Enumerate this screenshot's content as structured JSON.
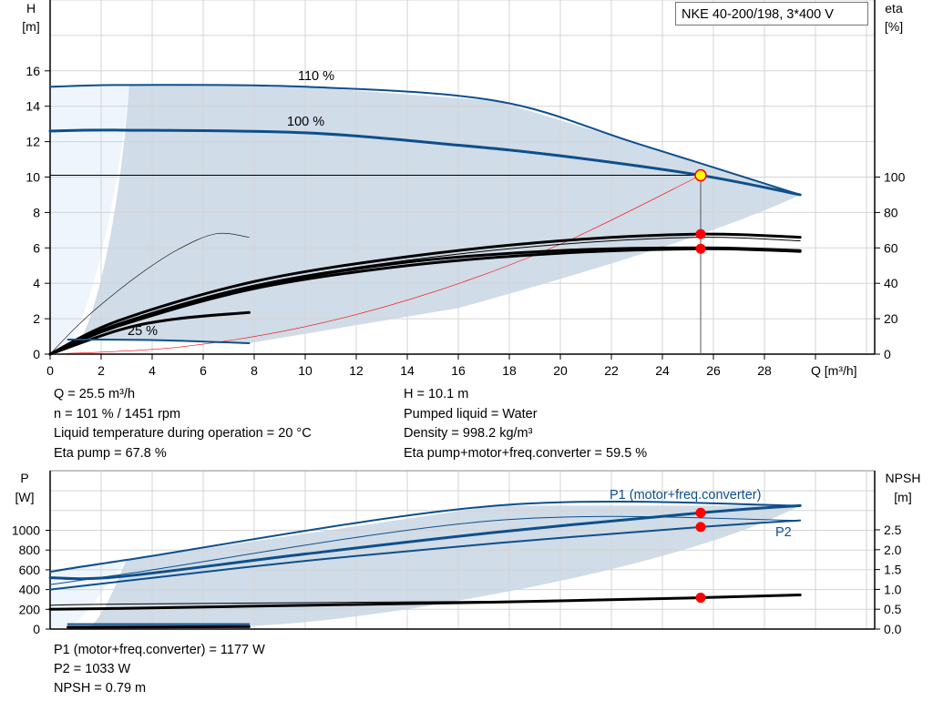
{
  "title_box": "NKE 40-200/198, 3*400 V",
  "colors": {
    "curve_blue": "#0d4f8b",
    "shade": "#d0dce8",
    "shade_light": "#eef5fc",
    "grid": "#d4d4d4",
    "duty_point": "#ff0000",
    "duty_fill": "#ffff00",
    "system_curve": "#ff0000"
  },
  "chart_data": [
    {
      "type": "line",
      "name_top": "Q-H / eta",
      "xlabel": "Q [m³/h]",
      "ylabel_left": [
        "H",
        "[m]"
      ],
      "ylabel_right": [
        "eta",
        "[%]"
      ],
      "xlim": [
        0,
        32
      ],
      "ylim_left": [
        0,
        20
      ],
      "ylim_right": [
        0,
        100
      ],
      "xticks": [
        "0",
        "2",
        "4",
        "6",
        "8",
        "10",
        "12",
        "14",
        "16",
        "18",
        "20",
        "22",
        "24",
        "26",
        "28"
      ],
      "yticks_left": [
        "0",
        "2",
        "4",
        "6",
        "8",
        "10",
        "12",
        "14",
        "16"
      ],
      "yticks_right": [
        "0",
        "20",
        "40",
        "60",
        "80",
        "100"
      ],
      "grid": true,
      "annotations": {
        "c110": "110 %",
        "c100": "100 %",
        "c25": "25 %"
      },
      "head_curves": [
        {
          "label": "110 %",
          "points": [
            [
              0,
              15.1
            ],
            [
              3.1,
              15.2
            ],
            [
              10,
              15.1
            ],
            [
              17.5,
              14.3
            ],
            [
              23,
              11.9
            ],
            [
              29.4,
              9.0
            ]
          ]
        },
        {
          "label": "100 %",
          "points": [
            [
              0,
              12.6
            ],
            [
              2.8,
              12.65
            ],
            [
              10,
              12.5
            ],
            [
              16,
              11.8
            ],
            [
              20,
              11.2
            ],
            [
              25.5,
              10.1
            ],
            [
              29.4,
              9.0
            ]
          ]
        },
        {
          "label": "25 %",
          "points": [
            [
              0.7,
              0.82
            ],
            [
              4,
              0.8
            ],
            [
              7.8,
              0.62
            ]
          ]
        }
      ],
      "eta_curves": [
        {
          "points": [
            [
              0,
              0
            ],
            [
              2.7,
              19
            ],
            [
              8,
              41
            ],
            [
              14,
              55
            ],
            [
              20,
              64
            ],
            [
              25.5,
              67.8
            ],
            [
              29.4,
              66
            ]
          ],
          "weight": "thick"
        },
        {
          "points": [
            [
              0,
              0
            ],
            [
              2.7,
              17.5
            ],
            [
              8,
              39
            ],
            [
              14,
              53
            ],
            [
              20,
              62
            ],
            [
              25.5,
              66
            ],
            [
              29.4,
              64
            ]
          ],
          "weight": "thin"
        },
        {
          "points": [
            [
              0,
              0
            ],
            [
              2.7,
              16
            ],
            [
              8,
              37
            ],
            [
              14,
              50
            ],
            [
              20,
              57
            ],
            [
              25.5,
              59.5
            ],
            [
              29.4,
              58
            ]
          ],
          "weight": "thick"
        },
        {
          "points": [
            [
              0,
              0
            ],
            [
              2.7,
              17
            ],
            [
              8,
              38
            ],
            [
              14,
              52
            ],
            [
              20,
              58.5
            ],
            [
              25.5,
              60
            ],
            [
              29.4,
              58.5
            ]
          ],
          "weight": "thick"
        },
        {
          "points": [
            [
              0,
              0
            ],
            [
              1,
              15
            ],
            [
              2,
              28
            ],
            [
              3.5,
              45
            ],
            [
              5,
              59
            ],
            [
              6.5,
              68
            ],
            [
              7.8,
              66
            ]
          ],
          "weight": "hairline"
        },
        {
          "points": [
            [
              0,
              0
            ],
            [
              2.8,
              14
            ],
            [
              5,
              20
            ],
            [
              7.8,
              23.5
            ]
          ],
          "weight": "thick"
        }
      ],
      "system_curve": {
        "points": [
          [
            0,
            0
          ],
          [
            5,
            0.39
          ],
          [
            10,
            1.55
          ],
          [
            15,
            3.5
          ],
          [
            20,
            6.21
          ],
          [
            25.5,
            10.1
          ]
        ]
      },
      "duty_point": {
        "Q": 25.5,
        "H": 10.1,
        "eta_pump": 67.8,
        "eta_total": 59.5
      }
    },
    {
      "type": "line",
      "ylabel_left": [
        "P",
        "[W]"
      ],
      "ylabel_right": [
        "NPSH",
        "[m]"
      ],
      "xlim": [
        0,
        32
      ],
      "ylim_left": [
        0,
        1600
      ],
      "ylim_right": [
        0,
        4
      ],
      "yticks_left": [
        "0",
        "200",
        "400",
        "600",
        "800",
        "1000"
      ],
      "yticks_right": [
        "0.0",
        "0.5",
        "1.0",
        "1.5",
        "2.0",
        "2.5"
      ],
      "grid": true,
      "annotations": {
        "p1": "P1 (motor+freq.converter)",
        "p2": "P2"
      },
      "power_curves": [
        {
          "points": [
            [
              0,
              580
            ],
            [
              3,
              700
            ],
            [
              17.5,
              1250
            ],
            [
              29.4,
              1250
            ]
          ],
          "weight": "medium"
        },
        {
          "points": [
            [
              0,
              450
            ],
            [
              3,
              560
            ],
            [
              17.5,
              1100
            ],
            [
              29.4,
              1100
            ]
          ],
          "weight": "thin"
        },
        {
          "points": [
            [
              0,
              520
            ],
            [
              2.7,
              530
            ],
            [
              10,
              760
            ],
            [
              17.5,
              980
            ],
            [
              25.5,
              1177
            ],
            [
              29.4,
              1250
            ]
          ],
          "weight": "thick"
        },
        {
          "points": [
            [
              0,
              400
            ],
            [
              2.7,
              480
            ],
            [
              10,
              690
            ],
            [
              17.5,
              870
            ],
            [
              25.5,
              1033
            ],
            [
              29.4,
              1100
            ]
          ],
          "weight": "medium"
        },
        {
          "points": [
            [
              0.7,
              50
            ],
            [
              7.8,
              50
            ]
          ],
          "weight": "medium"
        }
      ],
      "npsh_curves": [
        {
          "points": [
            [
              0,
              0.6
            ],
            [
              3,
              0.63
            ],
            [
              17.5,
              0.7
            ]
          ],
          "weight": "thin"
        },
        {
          "points": [
            [
              0,
              0.5
            ],
            [
              2.7,
              0.52
            ],
            [
              10,
              0.6
            ],
            [
              17.5,
              0.68
            ],
            [
              25.5,
              0.79
            ],
            [
              29.4,
              0.86
            ]
          ],
          "weight": "thick"
        },
        {
          "points": [
            [
              0.7,
              0.05
            ],
            [
              7.8,
              0.06
            ]
          ],
          "weight": "thick"
        }
      ],
      "duty_point": {
        "P1": 1177,
        "P2": 1033,
        "NPSH": 0.79
      }
    }
  ],
  "info_top": {
    "left": [
      "Q = 25.5 m³/h",
      "n = 101 % / 1451 rpm",
      "Liquid temperature during operation = 20 °C",
      "Eta pump = 67.8 %"
    ],
    "right": [
      "H = 10.1 m",
      "Pumped liquid = Water",
      "Density = 998.2 kg/m³",
      "Eta pump+motor+freq.converter = 59.5 %"
    ]
  },
  "info_bottom": [
    "P1 (motor+freq.converter) = 1177 W",
    "P2 = 1033 W",
    "NPSH = 0.79 m"
  ]
}
